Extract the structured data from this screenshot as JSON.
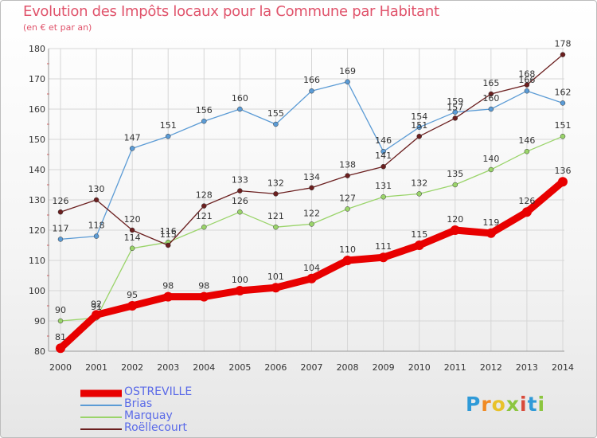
{
  "header": {
    "title": "Evolution des Impôts locaux pour la Commune par Habitant",
    "subtitle": "(en € et par an)"
  },
  "brand": {
    "letters": [
      "P",
      "r",
      "o",
      "x",
      "i",
      "t",
      "i"
    ],
    "colors": [
      "#2f9ad8",
      "#f08a24",
      "#e8c22a",
      "#8cc63f",
      "#d94a3a",
      "#2f9ad8",
      "#8cc63f"
    ]
  },
  "chart_data": {
    "type": "line",
    "title": "Evolution des Impôts locaux pour la Commune par Habitant",
    "subtitle": "(en € et par an)",
    "xlabel": "",
    "ylabel": "",
    "categories": [
      "2000",
      "2001",
      "2002",
      "2003",
      "2004",
      "2005",
      "2006",
      "2007",
      "2008",
      "2009",
      "2010",
      "2011",
      "2012",
      "2013",
      "2014"
    ],
    "ylim": [
      80,
      180
    ],
    "yticks": [
      80,
      90,
      100,
      110,
      120,
      130,
      140,
      150,
      160,
      170,
      180
    ],
    "grid": true,
    "legend_position": "bottom-left",
    "series": [
      {
        "name": "OSTREVILLE",
        "color": "#e80000",
        "values": [
          81,
          92,
          95,
          98,
          98,
          100,
          101,
          104,
          110,
          111,
          115,
          120,
          119,
          126,
          136
        ]
      },
      {
        "name": "Brias",
        "color": "#5b9bd5",
        "values": [
          117,
          118,
          147,
          151,
          156,
          160,
          155,
          166,
          169,
          146,
          154,
          159,
          160,
          166,
          162
        ]
      },
      {
        "name": "Marquay",
        "color": "#9ad46a",
        "values": [
          90,
          91,
          114,
          116,
          121,
          126,
          121,
          122,
          127,
          131,
          132,
          135,
          140,
          146,
          151
        ]
      },
      {
        "name": "Roëllecourt",
        "color": "#6b1f1f",
        "values": [
          126,
          130,
          120,
          115,
          128,
          133,
          132,
          134,
          138,
          141,
          151,
          157,
          165,
          168,
          178
        ]
      }
    ]
  }
}
